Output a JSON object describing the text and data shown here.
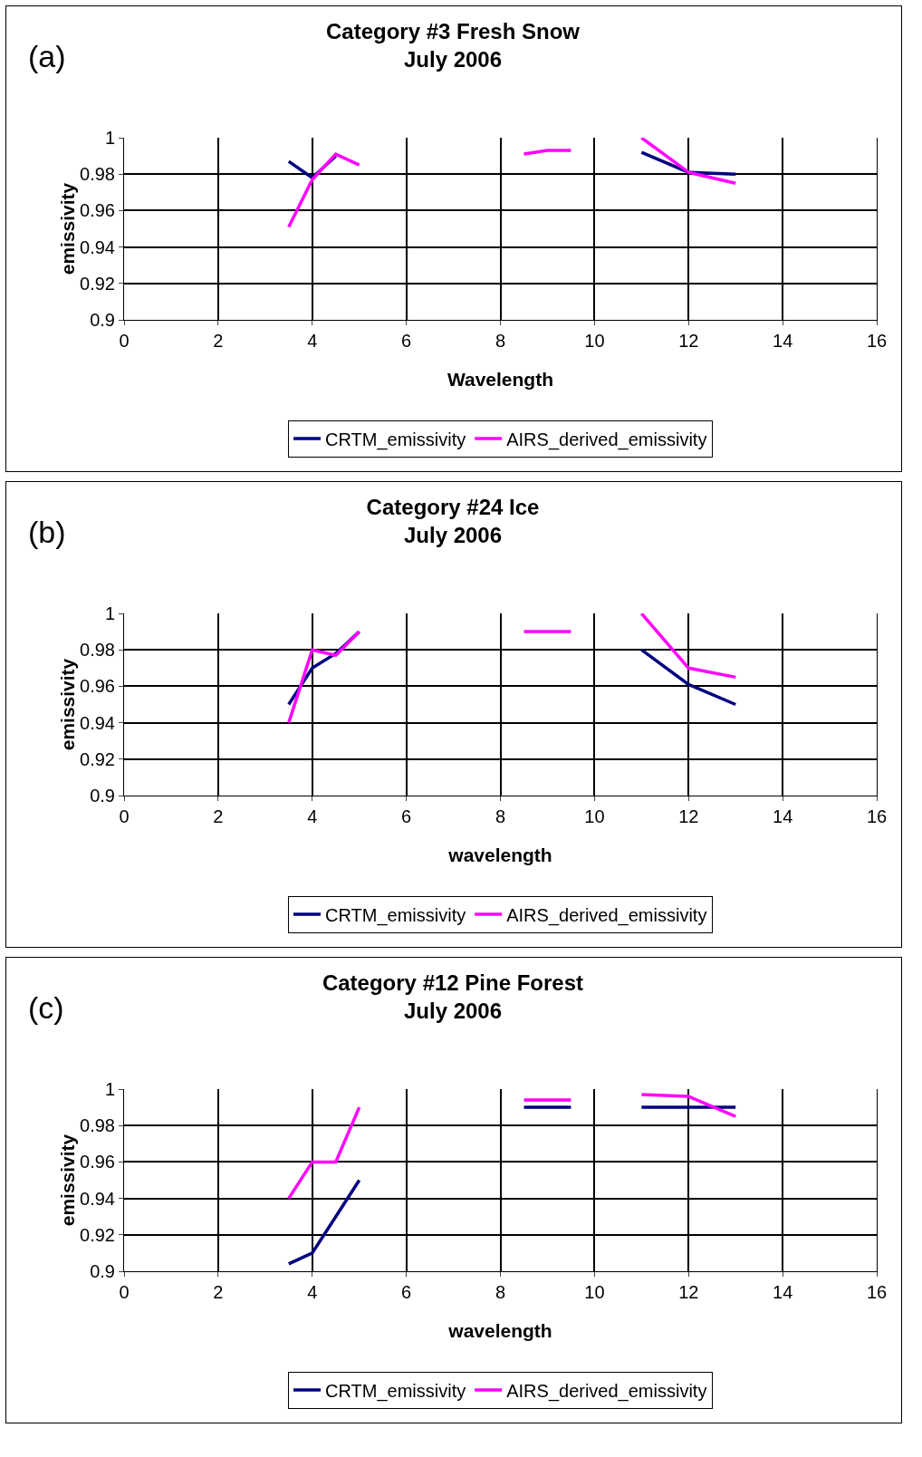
{
  "chart_data": [
    {
      "type": "line",
      "title": "Category #3 Fresh Snow\nJuly 2006",
      "xlabel": "Wavelength",
      "ylabel": "emissivity",
      "annotations": [
        "(a)"
      ],
      "xlim": [
        0,
        16
      ],
      "xticks": [
        0,
        2,
        4,
        6,
        8,
        10,
        12,
        14,
        16
      ],
      "ylim": [
        0.9,
        1
      ],
      "yticks": [
        0.9,
        0.92,
        0.94,
        0.96,
        0.98,
        1
      ],
      "grid": true,
      "legend": "bottom",
      "marker": "none",
      "line_style": "solid",
      "series": [
        {
          "name": "CRTM_emissivity",
          "color": "#000080",
          "x": [
            3.5,
            4,
            4.5,
            null,
            11,
            12,
            13
          ],
          "values": [
            0.987,
            0.978,
            0.99,
            null,
            0.992,
            0.981,
            0.98
          ]
        },
        {
          "name": "AIRS_derived_emissivity",
          "color": "#ff00ff",
          "x": [
            3.5,
            4,
            4.5,
            5,
            null,
            8.5,
            9,
            9.5,
            null,
            11,
            12,
            13
          ],
          "values": [
            0.951,
            0.977,
            0.991,
            0.985,
            null,
            0.991,
            0.993,
            0.993,
            null,
            1.0,
            0.981,
            0.975
          ]
        }
      ]
    },
    {
      "type": "line",
      "title": "Category #24 Ice\nJuly 2006",
      "xlabel": "wavelength",
      "ylabel": "emissivity",
      "annotations": [
        "(b)"
      ],
      "xlim": [
        0,
        16
      ],
      "xticks": [
        0,
        2,
        4,
        6,
        8,
        10,
        12,
        14,
        16
      ],
      "ylim": [
        0.9,
        1
      ],
      "yticks": [
        0.9,
        0.92,
        0.94,
        0.96,
        0.98,
        1
      ],
      "grid": true,
      "legend": "bottom",
      "marker": "none",
      "line_style": "solid",
      "series": [
        {
          "name": "CRTM_emissivity",
          "color": "#000080",
          "x": [
            3.5,
            4,
            4.5,
            5,
            null,
            11,
            12,
            13
          ],
          "values": [
            0.95,
            0.97,
            0.978,
            0.99,
            null,
            0.98,
            0.961,
            0.95
          ]
        },
        {
          "name": "AIRS_derived_emissivity",
          "color": "#ff00ff",
          "x": [
            3.5,
            4,
            4.5,
            5,
            null,
            8.5,
            9.5,
            null,
            11,
            12,
            13
          ],
          "values": [
            0.94,
            0.98,
            0.977,
            0.99,
            null,
            0.99,
            0.99,
            null,
            1.0,
            0.97,
            0.965
          ]
        }
      ]
    },
    {
      "type": "line",
      "title": "Category #12 Pine Forest\nJuly 2006",
      "xlabel": "wavelength",
      "ylabel": "emissivity",
      "annotations": [
        "(c)"
      ],
      "xlim": [
        0,
        16
      ],
      "xticks": [
        0,
        2,
        4,
        6,
        8,
        10,
        12,
        14,
        16
      ],
      "ylim": [
        0.9,
        1
      ],
      "yticks": [
        0.9,
        0.92,
        0.94,
        0.96,
        0.98,
        1
      ],
      "grid": true,
      "legend": "bottom",
      "marker": "none",
      "line_style": "solid",
      "series": [
        {
          "name": "CRTM_emissivity",
          "color": "#000080",
          "x": [
            3.5,
            4,
            4.5,
            5,
            null,
            8.5,
            9.5,
            null,
            11,
            12,
            13
          ],
          "values": [
            0.904,
            0.91,
            0.93,
            0.95,
            null,
            0.99,
            0.99,
            null,
            0.99,
            0.99,
            0.99
          ]
        },
        {
          "name": "AIRS_derived_emissivity",
          "color": "#ff00ff",
          "x": [
            3.5,
            4,
            4.5,
            5,
            null,
            8.5,
            9.5,
            null,
            11,
            12,
            13
          ],
          "values": [
            0.94,
            0.96,
            0.96,
            0.99,
            null,
            0.994,
            0.994,
            null,
            0.997,
            0.996,
            0.985
          ]
        }
      ]
    }
  ]
}
